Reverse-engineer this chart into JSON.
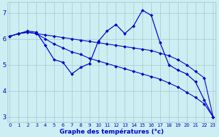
{
  "xlabel": "Graphe des températures (°c)",
  "hours": [
    0,
    1,
    2,
    3,
    4,
    5,
    6,
    7,
    8,
    9,
    10,
    11,
    12,
    13,
    14,
    15,
    16,
    17,
    18,
    19,
    20,
    21,
    22,
    23
  ],
  "line_jagged": [
    6.1,
    6.2,
    6.3,
    6.25,
    5.75,
    5.2,
    5.1,
    4.65,
    4.9,
    5.05,
    5.9,
    6.3,
    6.55,
    6.2,
    6.5,
    7.1,
    6.9,
    5.85,
    5.0,
    4.8,
    4.65,
    4.35,
    3.65,
    3.0
  ],
  "line_smooth1": [
    6.1,
    6.2,
    6.25,
    6.2,
    6.15,
    6.1,
    6.05,
    6.0,
    5.95,
    5.9,
    5.85,
    5.8,
    5.75,
    5.7,
    5.65,
    5.6,
    5.55,
    5.45,
    5.35,
    5.2,
    5.0,
    4.75,
    4.5,
    3.0
  ],
  "line_smooth2": [
    6.1,
    6.2,
    6.25,
    6.2,
    6.0,
    5.8,
    5.65,
    5.5,
    5.4,
    5.25,
    5.15,
    5.05,
    4.95,
    4.85,
    4.75,
    4.65,
    4.55,
    4.45,
    4.3,
    4.15,
    3.95,
    3.75,
    3.5,
    3.0
  ],
  "line_color": "#0000cc",
  "bg_color": "#cdeef2",
  "grid_color": "#a0c8cc",
  "ylim": [
    2.8,
    7.4
  ],
  "yticks": [
    3,
    4,
    5,
    6,
    7
  ],
  "xticks": [
    0,
    1,
    2,
    3,
    4,
    5,
    6,
    7,
    8,
    9,
    10,
    11,
    12,
    13,
    14,
    15,
    16,
    17,
    18,
    19,
    20,
    21,
    22,
    23
  ]
}
